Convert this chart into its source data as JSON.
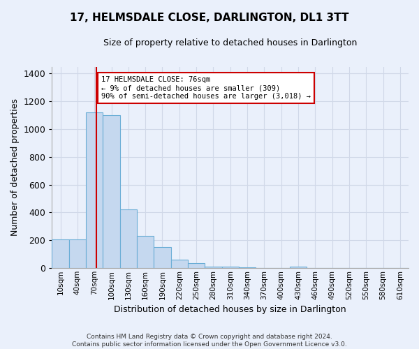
{
  "title": "17, HELMSDALE CLOSE, DARLINGTON, DL1 3TT",
  "subtitle": "Size of property relative to detached houses in Darlington",
  "xlabel": "Distribution of detached houses by size in Darlington",
  "ylabel": "Number of detached properties",
  "categories": [
    "10sqm",
    "40sqm",
    "70sqm",
    "100sqm",
    "130sqm",
    "160sqm",
    "190sqm",
    "220sqm",
    "250sqm",
    "280sqm",
    "310sqm",
    "340sqm",
    "370sqm",
    "400sqm",
    "430sqm",
    "460sqm",
    "490sqm",
    "520sqm",
    "550sqm",
    "580sqm",
    "610sqm"
  ],
  "values": [
    207,
    207,
    1120,
    1100,
    420,
    230,
    148,
    58,
    37,
    10,
    10,
    5,
    0,
    0,
    10,
    0,
    0,
    0,
    0,
    0,
    0
  ],
  "bar_color": "#c5d8ef",
  "bar_edge_color": "#6baed6",
  "background_color": "#eaf0fb",
  "grid_color": "#d0d8e8",
  "vline_color": "#cc0000",
  "vline_x_index": 2.1,
  "annotation_text": "17 HELMSDALE CLOSE: 76sqm\n← 9% of detached houses are smaller (309)\n90% of semi-detached houses are larger (3,018) →",
  "annotation_box_color": "#ffffff",
  "annotation_box_edge": "#cc0000",
  "ylim": [
    0,
    1450
  ],
  "footer_line1": "Contains HM Land Registry data © Crown copyright and database right 2024.",
  "footer_line2": "Contains public sector information licensed under the Open Government Licence v3.0.",
  "title_fontsize": 11,
  "subtitle_fontsize": 9,
  "ylabel_fontsize": 9,
  "xlabel_fontsize": 9
}
